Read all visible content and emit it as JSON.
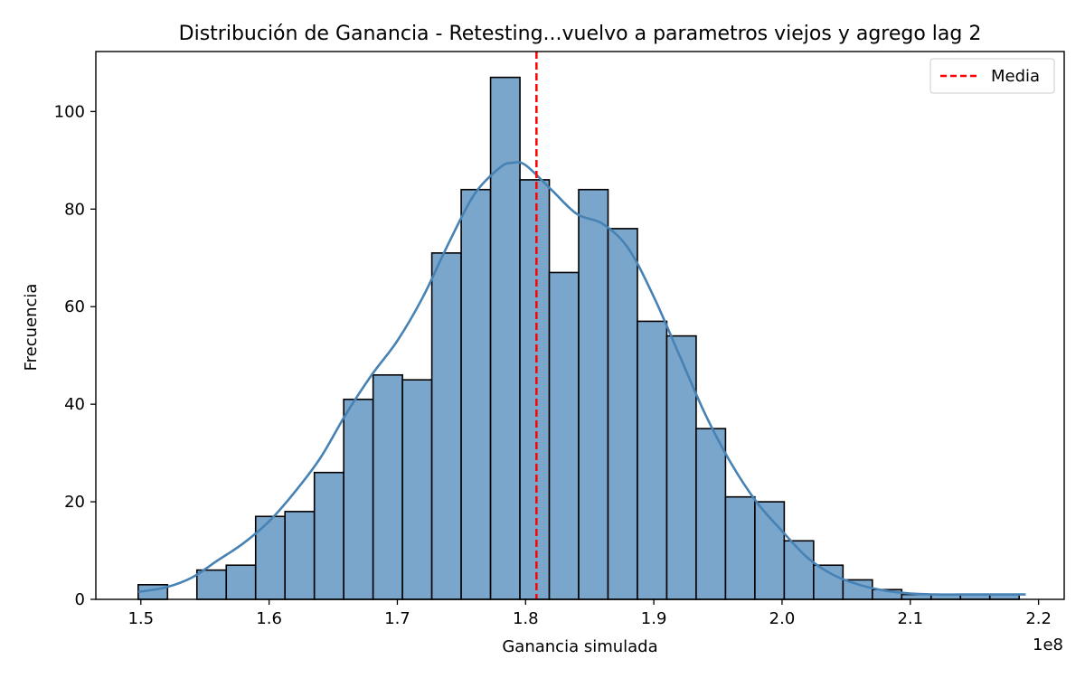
{
  "chart_data": {
    "type": "bar",
    "title": "Distribución de Ganancia - Retesting...vuelvo a parametros viejos y agrego lag 2",
    "xlabel": "Ganancia simulada",
    "ylabel": "Frecuencia",
    "x_offset_label": "1e8",
    "xlim": [
      1.4649,
      2.22
    ],
    "ylim": [
      0,
      112.3
    ],
    "xticks": [
      1.5,
      1.6,
      1.7,
      1.8,
      1.9,
      2.0,
      2.1,
      2.2
    ],
    "xtick_labels": [
      "1.5",
      "1.6",
      "1.7",
      "1.8",
      "1.9",
      "2.0",
      "2.1",
      "2.2"
    ],
    "yticks": [
      0,
      20,
      40,
      60,
      80,
      100
    ],
    "ytick_labels": [
      "0",
      "20",
      "40",
      "60",
      "80",
      "100"
    ],
    "bin_edges": [
      1.4979,
      1.5208,
      1.5437,
      1.5666,
      1.5895,
      1.6124,
      1.6353,
      1.6582,
      1.6811,
      1.704,
      1.7269,
      1.7498,
      1.7727,
      1.7956,
      1.8185,
      1.8414,
      1.8643,
      1.8872,
      1.9101,
      1.933,
      1.9559,
      1.9788,
      2.0017,
      2.0246,
      2.0475,
      2.0704,
      2.0933,
      2.1162,
      2.1391,
      2.162,
      2.1849
    ],
    "counts": [
      3,
      0,
      6,
      7,
      17,
      18,
      26,
      41,
      46,
      45,
      71,
      84,
      107,
      86,
      67,
      84,
      76,
      57,
      54,
      35,
      21,
      20,
      12,
      7,
      4,
      2,
      1,
      1,
      1,
      1
    ],
    "kde": {
      "x": [
        1.4979,
        1.52,
        1.54,
        1.56,
        1.58,
        1.6,
        1.62,
        1.64,
        1.66,
        1.68,
        1.7,
        1.72,
        1.74,
        1.76,
        1.78,
        1.79,
        1.8,
        1.82,
        1.84,
        1.86,
        1.88,
        1.9,
        1.92,
        1.94,
        1.96,
        1.98,
        2.0,
        2.02,
        2.04,
        2.06,
        2.08,
        2.1,
        2.12,
        2.14,
        2.16,
        2.18,
        2.19
      ],
      "y": [
        1.5,
        2.5,
        4.5,
        8,
        11.5,
        16,
        22,
        29,
        38,
        46,
        53,
        62,
        73,
        83,
        88.5,
        89.5,
        89,
        84,
        79,
        77,
        72,
        62,
        50,
        38,
        28,
        20,
        14,
        8.5,
        5,
        3,
        1.8,
        1.2,
        1,
        1,
        1,
        1,
        1
      ]
    },
    "mean": 1.8085,
    "legend": {
      "label": "Media",
      "position": "top-right"
    },
    "grid": false,
    "colors": {
      "bar_fill": "#7BA6CC",
      "bar_edge": "#000000",
      "kde_line": "#4682B4",
      "mean_line": "#FF0000"
    }
  }
}
